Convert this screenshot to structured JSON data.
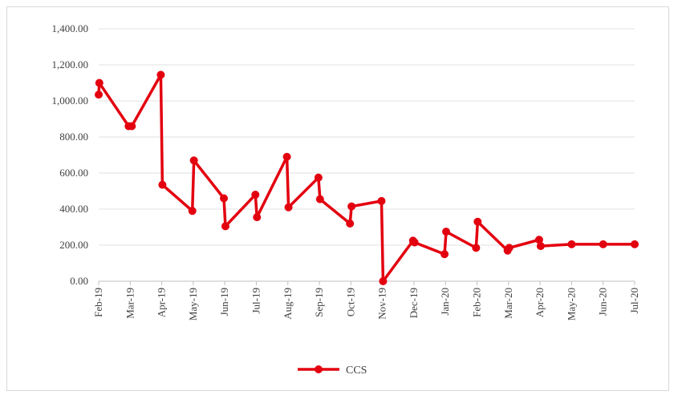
{
  "chart_data": {
    "type": "line",
    "title": "",
    "xlabel": "",
    "ylabel": "",
    "ylim": [
      0,
      1400
    ],
    "yticks": [
      "0.00",
      "200.00",
      "400.00",
      "600.00",
      "800.00",
      "1,000.00",
      "1,200.00",
      "1,400.00"
    ],
    "xticks": [
      "Feb-19",
      "Mar-19",
      "Apr-19",
      "May-19",
      "Jun-19",
      "Jul-19",
      "Aug-19",
      "Sep-19",
      "Oct-19",
      "Nov-19",
      "Dec-19",
      "Jan-20",
      "Feb-20",
      "Mar-20",
      "Apr-20",
      "May-20",
      "Jun-20",
      "Jul-20"
    ],
    "grid": true,
    "legend_position": "bottom",
    "series": [
      {
        "name": "CCS",
        "color": "#e3000f",
        "points": [
          {
            "x": 0,
            "y": 1035
          },
          {
            "x": 0.02,
            "y": 1100
          },
          {
            "x": 0.95,
            "y": 860
          },
          {
            "x": 1.05,
            "y": 860
          },
          {
            "x": 1.97,
            "y": 1145
          },
          {
            "x": 2.02,
            "y": 535
          },
          {
            "x": 2.97,
            "y": 390
          },
          {
            "x": 3.02,
            "y": 670
          },
          {
            "x": 3.97,
            "y": 460
          },
          {
            "x": 4.02,
            "y": 305
          },
          {
            "x": 4.97,
            "y": 480
          },
          {
            "x": 5.02,
            "y": 355
          },
          {
            "x": 5.97,
            "y": 690
          },
          {
            "x": 6.02,
            "y": 410
          },
          {
            "x": 6.97,
            "y": 575
          },
          {
            "x": 7.02,
            "y": 455
          },
          {
            "x": 7.97,
            "y": 320
          },
          {
            "x": 8.02,
            "y": 415
          },
          {
            "x": 8.97,
            "y": 445
          },
          {
            "x": 9.02,
            "y": 0
          },
          {
            "x": 9.97,
            "y": 225
          },
          {
            "x": 10.02,
            "y": 215
          },
          {
            "x": 10.97,
            "y": 150
          },
          {
            "x": 11.02,
            "y": 275
          },
          {
            "x": 11.97,
            "y": 185
          },
          {
            "x": 12.02,
            "y": 330
          },
          {
            "x": 12.97,
            "y": 170
          },
          {
            "x": 13.02,
            "y": 185
          },
          {
            "x": 13.97,
            "y": 230
          },
          {
            "x": 14.02,
            "y": 195
          },
          {
            "x": 15.0,
            "y": 205
          },
          {
            "x": 16.0,
            "y": 205
          },
          {
            "x": 17.0,
            "y": 205
          }
        ]
      }
    ]
  }
}
